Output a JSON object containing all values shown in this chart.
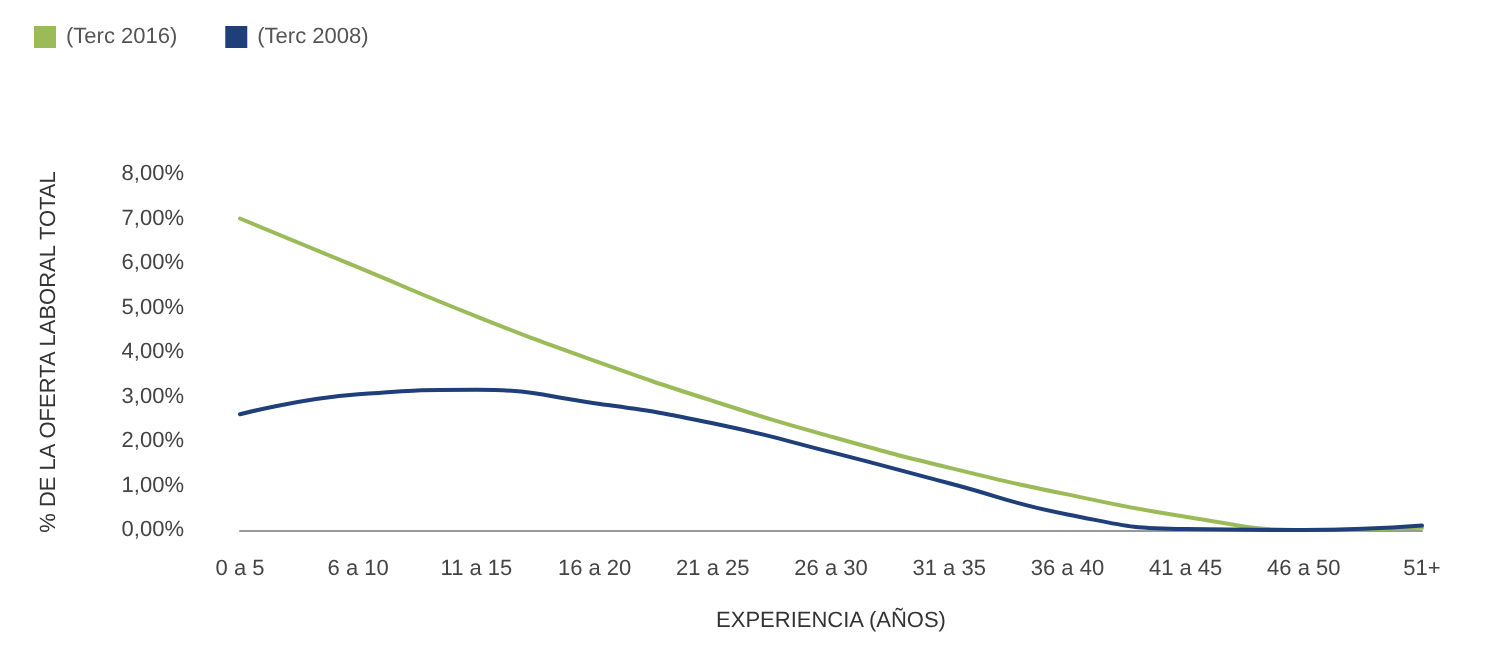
{
  "chart_data": {
    "type": "line",
    "xlabel": "EXPERIENCIA (AÑOS)",
    "ylabel": "% DE LA OFERTA LABORAL TOTAL",
    "categories": [
      "0 a 5",
      "6 a 10",
      "11 a 15",
      "16 a 20",
      "21 a 25",
      "26 a 30",
      "31 a 35",
      "36 a 40",
      "41 a 45",
      "46 a 50",
      "51+"
    ],
    "series": [
      {
        "name": "(Terc 2016)",
        "color": "#9bbb59",
        "values": [
          7.0,
          5.9,
          4.8,
          3.8,
          2.9,
          2.1,
          1.4,
          0.8,
          0.3,
          0.0,
          0.05
        ]
      },
      {
        "name": "(Terc 2008)",
        "color": "#1f3f7a",
        "values": [
          2.6,
          3.05,
          3.15,
          2.85,
          2.4,
          1.75,
          1.05,
          0.35,
          0.02,
          0.0,
          0.1
        ]
      }
    ],
    "ylim": [
      0,
      8
    ],
    "yticks": [
      {
        "value": 0,
        "label": "0,00%"
      },
      {
        "value": 1,
        "label": "1,00%"
      },
      {
        "value": 2,
        "label": "2,00%"
      },
      {
        "value": 3,
        "label": "3,00%"
      },
      {
        "value": 4,
        "label": "4,00%"
      },
      {
        "value": 5,
        "label": "5,00%"
      },
      {
        "value": 6,
        "label": "6,00%"
      },
      {
        "value": 7,
        "label": "7,00%"
      },
      {
        "value": 8,
        "label": "8,00%"
      }
    ],
    "grid": false,
    "legend": "top left",
    "marker": "none",
    "line_style": "solid"
  }
}
